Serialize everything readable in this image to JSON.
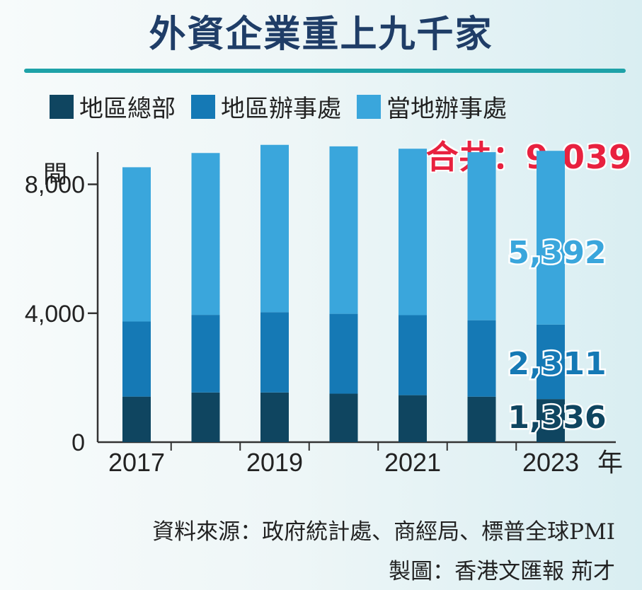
{
  "title": "外資企業重上九千家",
  "total_label": "合共：9,039",
  "source_line": "資料來源：政府統計處、商經局、標普全球PMI",
  "credit_line": "製圖：香港文匯報  荊才",
  "colors": {
    "hq": "#0f4560",
    "regional": "#1579b5",
    "local": "#3aa6dc",
    "accent": "#1ea2a8",
    "total": "#e8213f"
  },
  "chart_data": {
    "type": "bar",
    "stacked": true,
    "ylabel": "間",
    "xlabel_suffix": "年",
    "ylim": [
      0,
      9000
    ],
    "yticks": [
      0,
      4000,
      8000
    ],
    "ytick_labels": [
      "0",
      "4,000",
      "8,000"
    ],
    "categories": [
      "2017",
      "2018",
      "2019",
      "2020",
      "2021",
      "2022",
      "2023"
    ],
    "xtick_labels": [
      "2017",
      "",
      "2019",
      "",
      "2021",
      "",
      "2023"
    ],
    "series": [
      {
        "name": "地區總部",
        "color": "#0f4560",
        "values": [
          1413,
          1541,
          1541,
          1504,
          1457,
          1411,
          1336
        ]
      },
      {
        "name": "地區辦事處",
        "color": "#1579b5",
        "values": [
          2330,
          2408,
          2489,
          2478,
          2483,
          2372,
          2311
        ]
      },
      {
        "name": "當地辦事處",
        "color": "#3aa6dc",
        "values": [
          4787,
          5023,
          5195,
          5196,
          5165,
          5215,
          5392
        ]
      }
    ],
    "annotations": [
      "1,336",
      "2,311",
      "5,392"
    ],
    "total": "9,039"
  }
}
